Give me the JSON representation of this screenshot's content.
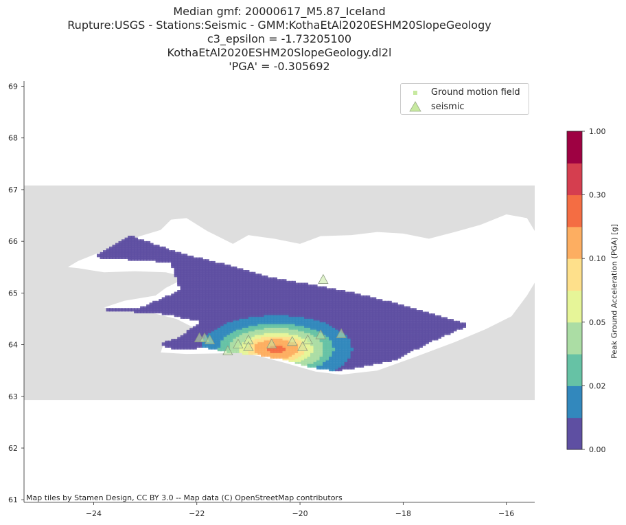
{
  "title": {
    "lines": [
      "Median gmf: 20000617_M5.87_Iceland",
      "Rupture:USGS -  Stations:Seismic - GMM:KothaEtAl2020ESHM20SlopeGeology",
      "c3_epsilon = -1.73205100",
      "KothaEtAl2020ESHM20SlopeGeology.dl2l",
      "'PGA' = -0.305692"
    ]
  },
  "map": {
    "type": "scatter",
    "x_ticks": [
      "−24",
      "−22",
      "−20",
      "−18",
      "−16"
    ],
    "x_tick_values": [
      -24,
      -22,
      -20,
      -18,
      -16
    ],
    "y_ticks": [
      "61",
      "62",
      "63",
      "64",
      "65",
      "66",
      "67",
      "68",
      "69"
    ],
    "y_tick_values": [
      61,
      62,
      63,
      64,
      65,
      66,
      67,
      68,
      69
    ],
    "xlim": [
      -25.35,
      -15.45
    ],
    "ylim": [
      60.95,
      69.1
    ],
    "basemap_extent": {
      "lon": [
        -25.35,
        -15.45
      ],
      "lat": [
        62.93,
        67.08
      ]
    },
    "ground_motion_field": {
      "description": "grid of PGA values covering SW Iceland",
      "epicenter": {
        "lon": -20.45,
        "lat": 63.93
      },
      "max_pga_g": 0.3
    },
    "stations": [
      {
        "lon": -21.95,
        "lat": 64.12
      },
      {
        "lon": -21.85,
        "lat": 64.12
      },
      {
        "lon": -21.75,
        "lat": 64.08
      },
      {
        "lon": -21.4,
        "lat": 63.87
      },
      {
        "lon": -21.2,
        "lat": 64.0
      },
      {
        "lon": -21.0,
        "lat": 64.08
      },
      {
        "lon": -21.0,
        "lat": 63.95
      },
      {
        "lon": -20.55,
        "lat": 64.0
      },
      {
        "lon": -20.15,
        "lat": 64.05
      },
      {
        "lon": -19.95,
        "lat": 63.95
      },
      {
        "lon": -19.85,
        "lat": 64.08
      },
      {
        "lon": -19.6,
        "lat": 64.18
      },
      {
        "lon": -19.2,
        "lat": 64.2
      },
      {
        "lon": -19.55,
        "lat": 65.25
      }
    ]
  },
  "legend": {
    "items": [
      {
        "label": "Ground motion field",
        "color": "#c7e9a0",
        "marker": "square"
      },
      {
        "label": "seismic",
        "color": "#c7e9a0",
        "marker": "triangle"
      }
    ]
  },
  "colorbar": {
    "label": "Peak Ground Acceleration (PGA) [g]",
    "tick_labels": [
      "0.00",
      "0.02",
      "0.05",
      "0.10",
      "0.30",
      "1.00"
    ],
    "colors": [
      "#5e4fa2",
      "#3288bd",
      "#66c2a5",
      "#abdda4",
      "#e6f598",
      "#fee08b",
      "#fdae61",
      "#f46d43",
      "#d53e4f",
      "#9e0142"
    ]
  },
  "attribution": "Map tiles by Stamen Design, CC BY 3.0 -- Map data (C) OpenStreetMap contributors"
}
